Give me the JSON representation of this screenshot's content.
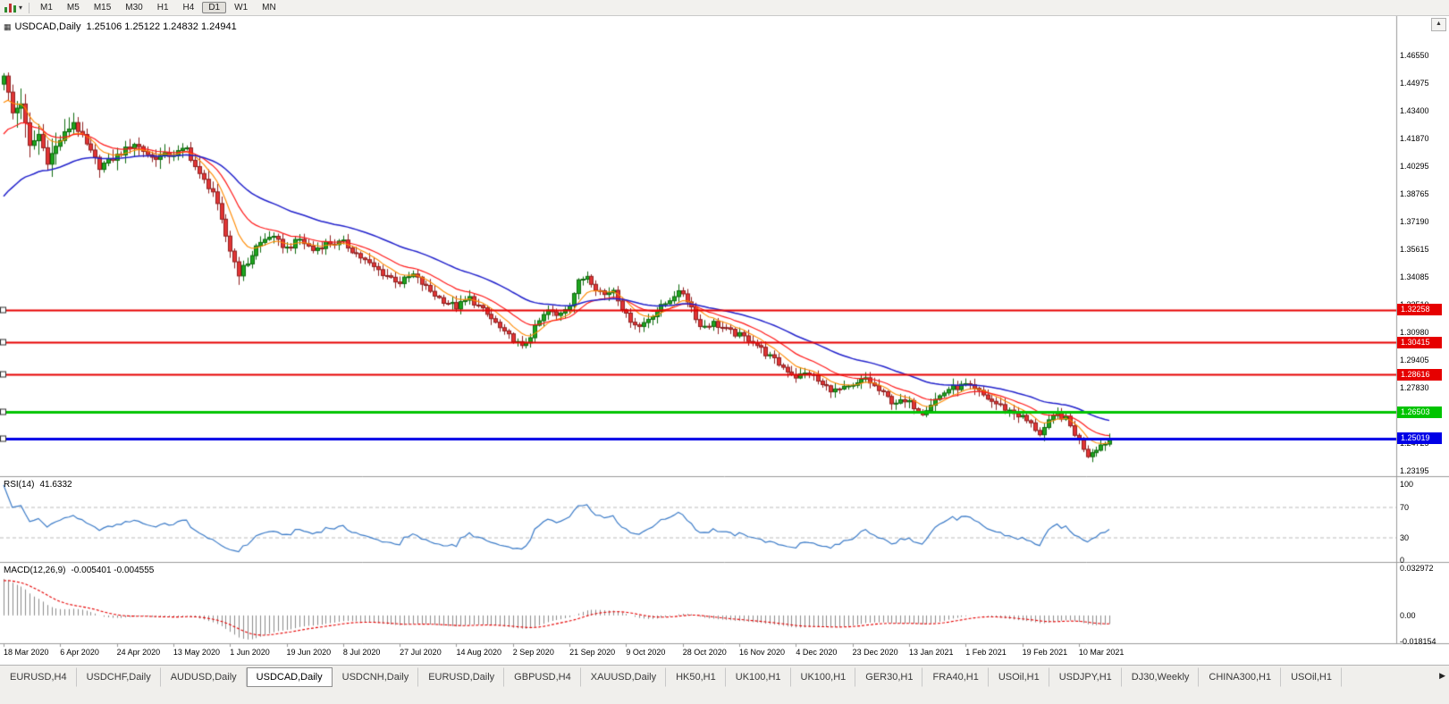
{
  "toolbar": {
    "timeframes": [
      {
        "label": "M1",
        "active": false
      },
      {
        "label": "M5",
        "active": false
      },
      {
        "label": "M15",
        "active": false
      },
      {
        "label": "M30",
        "active": false
      },
      {
        "label": "H1",
        "active": false
      },
      {
        "label": "H4",
        "active": false
      },
      {
        "label": "D1",
        "active": true
      },
      {
        "label": "W1",
        "active": false
      },
      {
        "label": "MN",
        "active": false
      }
    ]
  },
  "icons": {
    "dropdown_caret": "▾",
    "window_marker": "▦",
    "scroll_up": "▲",
    "tab_scroll_right": "▶"
  },
  "chart": {
    "title": "USDCAD,Daily",
    "ohlc_text": "1.25106 1.25122 1.24832 1.24941",
    "price_axis_ticks": [
      "1.46550",
      "1.44975",
      "1.43400",
      "1.41870",
      "1.40295",
      "1.38765",
      "1.37190",
      "1.35615",
      "1.34085",
      "1.32510",
      "1.30980",
      "1.29405",
      "1.27830",
      "1.26300",
      "1.24725",
      "1.23195"
    ],
    "levels": [
      {
        "label": "1.32258",
        "price": 1.32258,
        "color": "#e60000",
        "width": 2
      },
      {
        "label": "1.30415",
        "price": 1.30415,
        "color": "#e60000",
        "width": 2
      },
      {
        "label": "1.28616",
        "price": 1.28616,
        "color": "#e60000",
        "width": 2
      },
      {
        "label": "1.26503",
        "price": 1.26503,
        "color": "#00c400",
        "width": 3
      },
      {
        "label": "1.25019",
        "price": 1.25019,
        "color": "#0000e6",
        "width": 3
      }
    ],
    "dates": [
      "18 Mar 2020",
      "6 Apr 2020",
      "24 Apr 2020",
      "13 May 2020",
      "1 Jun 2020",
      "19 Jun 2020",
      "8 Jul 2020",
      "27 Jul 2020",
      "14 Aug 2020",
      "2 Sep 2020",
      "21 Sep 2020",
      "9 Oct 2020",
      "28 Oct 2020",
      "16 Nov 2020",
      "4 Dec 2020",
      "23 Dec 2020",
      "13 Jan 2021",
      "1 Feb 2021",
      "19 Feb 2021",
      "10 Mar 2021"
    ]
  },
  "rsi": {
    "label": "RSI(14)",
    "value": "41.6332",
    "line_color": "#3b7bc8",
    "axis": [
      {
        "label": "100",
        "value": 100
      },
      {
        "label": "70",
        "value": 70
      },
      {
        "label": "30",
        "value": 30
      },
      {
        "label": "0",
        "value": 0
      }
    ],
    "dashed_levels": [
      70,
      30
    ]
  },
  "macd": {
    "label": "MACD(12,26,9)",
    "values": "-0.005401 -0.004555",
    "histogram_color": "#8c8c8c",
    "signal_color": "#e60000",
    "axis": [
      {
        "label": "0.032972",
        "value": 0.032972
      },
      {
        "label": "0.00",
        "value": 0
      },
      {
        "label": "-0.018154",
        "value": -0.018154
      }
    ]
  },
  "tabs": [
    {
      "label": "EURUSD,H4",
      "active": false
    },
    {
      "label": "USDCHF,Daily",
      "active": false
    },
    {
      "label": "AUDUSD,Daily",
      "active": false
    },
    {
      "label": "USDCAD,Daily",
      "active": true
    },
    {
      "label": "USDCNH,Daily",
      "active": false
    },
    {
      "label": "EURUSD,Daily",
      "active": false
    },
    {
      "label": "GBPUSD,H4",
      "active": false
    },
    {
      "label": "XAUUSD,Daily",
      "active": false
    },
    {
      "label": "HK50,H1",
      "active": false
    },
    {
      "label": "UK100,H1",
      "active": false
    },
    {
      "label": "UK100,H1",
      "active": false
    },
    {
      "label": "GER30,H1",
      "active": false
    },
    {
      "label": "FRA40,H1",
      "active": false
    },
    {
      "label": "USOil,H1",
      "active": false
    },
    {
      "label": "USDJPY,H1",
      "active": false
    },
    {
      "label": "DJ30,Weekly",
      "active": false
    },
    {
      "label": "CHINA300,H1",
      "active": false
    },
    {
      "label": "USOil,H1",
      "active": false
    }
  ],
  "chart_data": {
    "type": "candlestick",
    "symbol": "USDCAD",
    "period": "Daily",
    "current_ohlc": {
      "open": 1.25106,
      "high": 1.25122,
      "low": 1.24832,
      "close": 1.24941
    },
    "axis_top": 1.4655,
    "axis_bottom": 1.23195,
    "grid": false,
    "candles_count": 255,
    "up_color": "#1fa51f",
    "up_edge": "#0e6b0e",
    "down_color": "#e23535",
    "down_edge": "#8f1f1f",
    "warmup": {
      "bars": 40,
      "from": 1.295,
      "to": 1.448
    },
    "close_keyframes": [
      [
        0,
        1.455
      ],
      [
        2,
        1.433
      ],
      [
        4,
        1.439
      ],
      [
        6,
        1.414
      ],
      [
        8,
        1.421
      ],
      [
        10,
        1.406
      ],
      [
        13,
        1.418
      ],
      [
        16,
        1.428
      ],
      [
        19,
        1.415
      ],
      [
        22,
        1.403
      ],
      [
        26,
        1.409
      ],
      [
        30,
        1.416
      ],
      [
        34,
        1.408
      ],
      [
        39,
        1.41
      ],
      [
        42,
        1.413
      ],
      [
        45,
        1.398
      ],
      [
        48,
        1.389
      ],
      [
        50,
        1.372
      ],
      [
        52,
        1.356
      ],
      [
        54,
        1.343
      ],
      [
        56,
        1.349
      ],
      [
        58,
        1.358
      ],
      [
        61,
        1.364
      ],
      [
        65,
        1.357
      ],
      [
        68,
        1.362
      ],
      [
        71,
        1.356
      ],
      [
        74,
        1.36
      ],
      [
        78,
        1.36
      ],
      [
        81,
        1.354
      ],
      [
        84,
        1.348
      ],
      [
        87,
        1.343
      ],
      [
        91,
        1.338
      ],
      [
        94,
        1.342
      ],
      [
        97,
        1.335
      ],
      [
        100,
        1.329
      ],
      [
        104,
        1.324
      ],
      [
        107,
        1.329
      ],
      [
        110,
        1.322
      ],
      [
        113,
        1.315
      ],
      [
        115,
        1.309
      ],
      [
        117,
        1.306
      ],
      [
        119,
        1.301
      ],
      [
        121,
        1.308
      ],
      [
        123,
        1.316
      ],
      [
        125,
        1.322
      ],
      [
        127,
        1.319
      ],
      [
        130,
        1.326
      ],
      [
        132,
        1.338
      ],
      [
        134,
        1.342
      ],
      [
        136,
        1.335
      ],
      [
        138,
        1.331
      ],
      [
        140,
        1.334
      ],
      [
        143,
        1.319
      ],
      [
        146,
        1.313
      ],
      [
        149,
        1.32
      ],
      [
        152,
        1.326
      ],
      [
        154,
        1.331
      ],
      [
        156,
        1.332
      ],
      [
        158,
        1.324
      ],
      [
        160,
        1.313
      ],
      [
        163,
        1.315
      ],
      [
        166,
        1.311
      ],
      [
        169,
        1.308
      ],
      [
        172,
        1.305
      ],
      [
        175,
        1.298
      ],
      [
        178,
        1.292
      ],
      [
        182,
        1.285
      ],
      [
        185,
        1.287
      ],
      [
        188,
        1.28
      ],
      [
        191,
        1.277
      ],
      [
        195,
        1.279
      ],
      [
        198,
        1.284
      ],
      [
        201,
        1.277
      ],
      [
        204,
        1.271
      ],
      [
        208,
        1.27
      ],
      [
        211,
        1.265
      ],
      [
        214,
        1.272
      ],
      [
        217,
        1.278
      ],
      [
        221,
        1.28
      ],
      [
        224,
        1.276
      ],
      [
        227,
        1.271
      ],
      [
        230,
        1.267
      ],
      [
        234,
        1.262
      ],
      [
        236,
        1.258
      ],
      [
        238,
        1.253
      ],
      [
        240,
        1.259
      ],
      [
        242,
        1.264
      ],
      [
        244,
        1.261
      ],
      [
        247,
        1.249
      ],
      [
        249,
        1.241
      ],
      [
        251,
        1.245
      ],
      [
        254,
        1.2494
      ]
    ],
    "ma_estimate": {
      "fast_period": 8,
      "fast_color": "#ff8a00",
      "mid_period": 17,
      "mid_color": "#ff1a1a",
      "slow_period": 40,
      "slow_color": "#2222cc"
    },
    "horizontal_levels": [
      1.32258,
      1.30415,
      1.28616,
      1.26503,
      1.25019
    ],
    "rsi_period": 14,
    "macd_params": [
      12,
      26,
      9
    ]
  }
}
